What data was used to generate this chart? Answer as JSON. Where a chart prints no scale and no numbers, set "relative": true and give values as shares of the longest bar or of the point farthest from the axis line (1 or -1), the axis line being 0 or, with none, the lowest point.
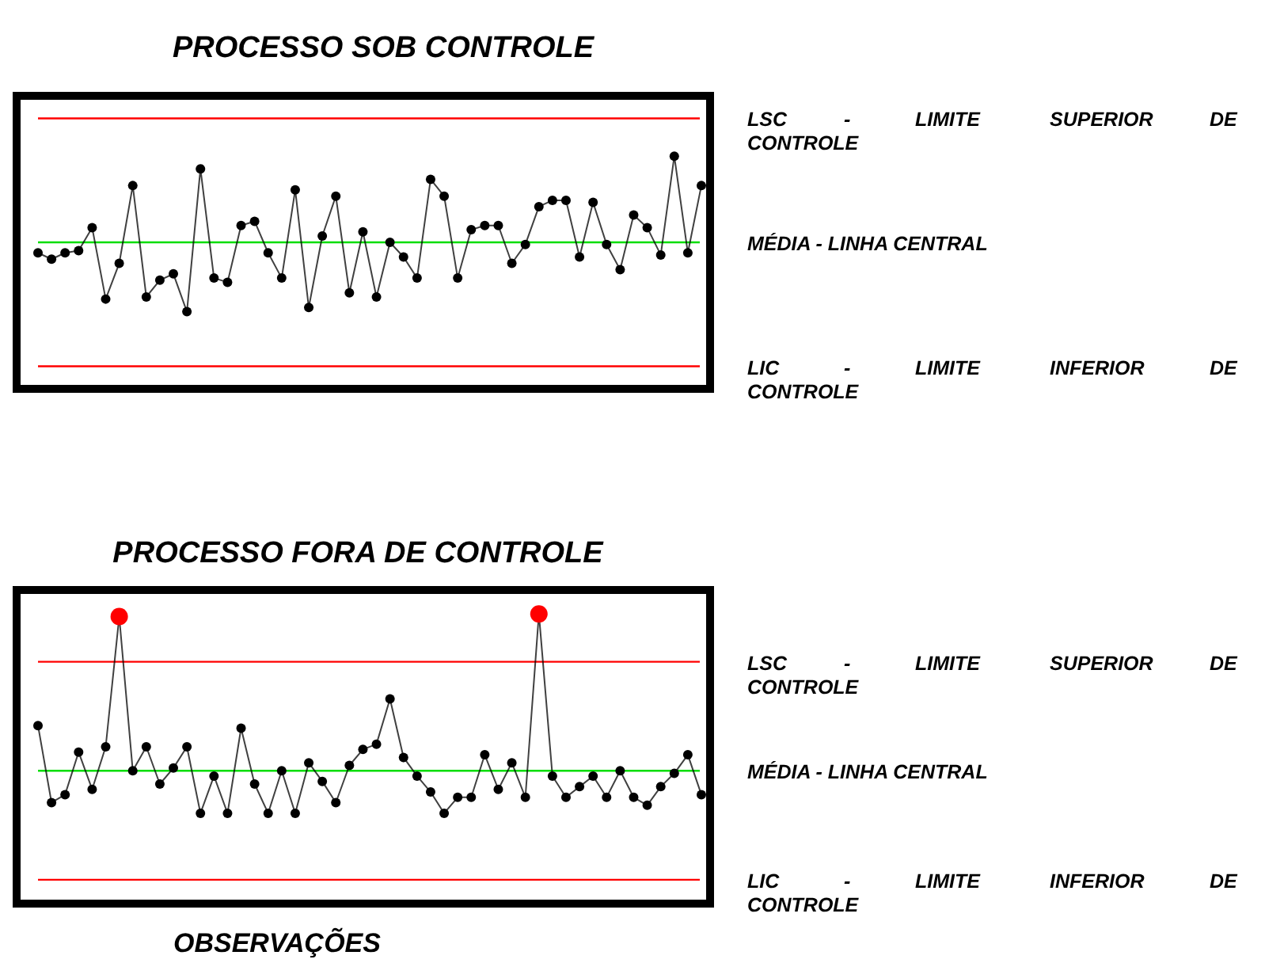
{
  "chart_data": [
    {
      "type": "line",
      "title": "PROCESSO SOB CONTROLE",
      "relative": true,
      "marker": "circle",
      "categories": [
        null,
        null,
        null,
        null,
        null,
        null,
        null,
        null,
        null,
        null,
        null,
        null,
        null,
        null,
        null,
        null,
        null,
        null,
        null,
        null,
        null,
        null,
        null,
        null,
        null,
        null,
        null,
        null,
        null,
        null,
        null,
        null,
        null,
        null,
        null,
        null,
        null,
        null,
        null,
        null,
        null,
        null,
        null,
        null,
        null,
        null,
        null,
        null,
        null,
        null
      ],
      "series": [
        {
          "color": "#000000",
          "values": [
            0.54,
            0.51,
            0.54,
            0.55,
            0.66,
            0.32,
            0.49,
            0.86,
            0.33,
            0.41,
            0.44,
            0.26,
            0.94,
            0.42,
            0.4,
            0.67,
            0.69,
            0.54,
            0.42,
            0.84,
            0.28,
            0.62,
            0.81,
            0.35,
            0.64,
            0.33,
            0.59,
            0.52,
            0.42,
            0.89,
            0.81,
            0.42,
            0.65,
            0.67,
            0.67,
            0.49,
            0.58,
            0.76,
            0.79,
            0.79,
            0.52,
            0.78,
            0.58,
            0.46,
            0.72,
            0.66,
            0.53,
            1,
            0.54,
            0.86
          ]
        }
      ],
      "ref_lines": [
        {
          "axis": "y",
          "value": 1.18,
          "label": "LSC - LIMITE SUPERIOR DE CONTROLE",
          "color": "#ff0000"
        },
        {
          "axis": "y",
          "value": 0.59,
          "label": "MÉDIA - LINHA CENTRAL",
          "color": "#00dd00"
        },
        {
          "axis": "y",
          "value": 0,
          "label": "LIC - LIMITE INFERIOR DE CONTROLE",
          "color": "#ff0000"
        }
      ]
    },
    {
      "type": "line",
      "title": "PROCESSO FORA DE CONTROLE",
      "xlabel": "OBSERVAÇÕES",
      "relative": true,
      "marker": "circle",
      "categories": [
        null,
        null,
        null,
        null,
        null,
        null,
        null,
        null,
        null,
        null,
        null,
        null,
        null,
        null,
        null,
        null,
        null,
        null,
        null,
        null,
        null,
        null,
        null,
        null,
        null,
        null,
        null,
        null,
        null,
        null,
        null,
        null,
        null,
        null,
        null,
        null,
        null,
        null,
        null,
        null,
        null,
        null,
        null,
        null,
        null,
        null,
        null,
        null,
        null,
        null
      ],
      "series": [
        {
          "color": "#000000",
          "values": [
            0.58,
            0.29,
            0.32,
            0.48,
            0.34,
            0.5,
            0.99,
            0.41,
            0.5,
            0.36,
            0.42,
            0.5,
            0.25,
            0.39,
            0.25,
            0.57,
            0.36,
            0.25,
            0.41,
            0.25,
            0.44,
            0.37,
            0.29,
            0.43,
            0.49,
            0.51,
            0.68,
            0.46,
            0.39,
            0.33,
            0.25,
            0.31,
            0.31,
            0.47,
            0.34,
            0.44,
            0.31,
            1,
            0.39,
            0.31,
            0.35,
            0.39,
            0.31,
            0.41,
            0.31,
            0.28,
            0.35,
            0.4,
            0.47,
            0.32
          ],
          "colors": [
            "#000000",
            "#000000",
            "#000000",
            "#000000",
            "#000000",
            "#000000",
            "#ff0000",
            "#000000",
            "#000000",
            "#000000",
            "#000000",
            "#000000",
            "#000000",
            "#000000",
            "#000000",
            "#000000",
            "#000000",
            "#000000",
            "#000000",
            "#000000",
            "#000000",
            "#000000",
            "#000000",
            "#000000",
            "#000000",
            "#000000",
            "#000000",
            "#000000",
            "#000000",
            "#000000",
            "#000000",
            "#000000",
            "#000000",
            "#000000",
            "#000000",
            "#000000",
            "#000000",
            "#ff0000",
            "#000000",
            "#000000",
            "#000000",
            "#000000",
            "#000000",
            "#000000",
            "#000000",
            "#000000",
            "#000000",
            "#000000",
            "#000000",
            "#000000"
          ]
        }
      ],
      "ref_lines": [
        {
          "axis": "y",
          "value": 0.82,
          "label": "LSC - LIMITE SUPERIOR DE CONTROLE",
          "color": "#ff0000"
        },
        {
          "axis": "y",
          "value": 0.41,
          "label": "MÉDIA - LINHA CENTRAL",
          "color": "#00dd00"
        },
        {
          "axis": "y",
          "value": 0,
          "label": "LIC - LIMITE INFERIOR DE CONTROLE",
          "color": "#ff0000"
        }
      ]
    }
  ]
}
